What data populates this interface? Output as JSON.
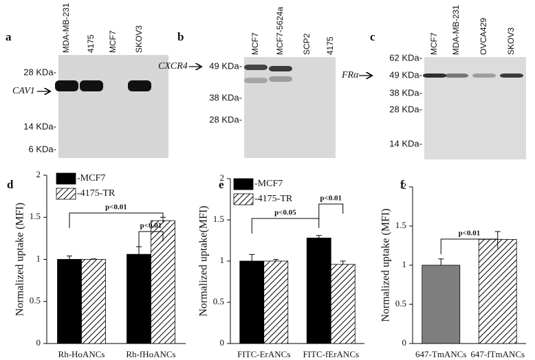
{
  "blots": [
    {
      "letter": "a",
      "lanes": [
        "MDA-MB-231",
        "4175",
        "MCF7",
        "SKOV3"
      ],
      "markers": [
        "28 KDa-",
        "14 KDa-",
        "6 KDa-"
      ],
      "target": "CAV1"
    },
    {
      "letter": "b",
      "lanes": [
        "MCF7",
        "MCF7-5624a",
        "SCP2",
        "4175"
      ],
      "markers": [
        "49 KDa-",
        "38 KDa-",
        "28 KDa-"
      ],
      "target": "CXCR4"
    },
    {
      "letter": "c",
      "lanes": [
        "MCF7",
        "MDA-MB-231",
        "OVCA429",
        "SKOV3"
      ],
      "markers": [
        "62 KDa-",
        "49 KDa-",
        "38 KDa-",
        "28 KDa-",
        "14 KDa-"
      ],
      "target": "FRα"
    }
  ],
  "chart_data": [
    {
      "type": "bar",
      "letter": "d",
      "y_label": "Normalized uptake (MFI)",
      "categories": [
        "Rh-HoANCs",
        "Rh-fHoANCs"
      ],
      "series": [
        {
          "name": "-MCF7",
          "color": "#000000",
          "values": [
            1.0,
            1.06
          ],
          "errors": [
            0.04,
            0.09
          ]
        },
        {
          "name": "-4175-TR",
          "color": "hatched",
          "values": [
            1.0,
            1.46
          ],
          "errors": [
            0.005,
            0.04
          ]
        }
      ],
      "ylim": [
        0,
        2
      ],
      "yticks": [
        0,
        0.5,
        1,
        1.5,
        2
      ],
      "annotations": [
        "p<0.01",
        "p<0.01"
      ]
    },
    {
      "type": "bar",
      "letter": "e",
      "y_label": "Normalized uptake(MFI)",
      "categories": [
        "FITC-ErANCs",
        "FITC-fErANCs"
      ],
      "series": [
        {
          "name": "-MCF7",
          "color": "#000000",
          "values": [
            1.0,
            1.28
          ],
          "errors": [
            0.08,
            0.03
          ]
        },
        {
          "name": "-4175-TR",
          "color": "hatched",
          "values": [
            1.0,
            0.96
          ],
          "errors": [
            0.02,
            0.04
          ]
        }
      ],
      "ylim": [
        0,
        2
      ],
      "yticks": [
        0,
        0.5,
        1,
        1.5,
        2
      ],
      "annotations": [
        "p<0.05",
        "p<0.01"
      ]
    },
    {
      "type": "bar",
      "letter": "f",
      "y_label": "Normalized uptake (MFI)",
      "categories": [
        "647-TmANCs",
        "647-fTmANCs"
      ],
      "series": [
        {
          "values": [
            1.0,
            1.33
          ],
          "errors": [
            0.08,
            0.1
          ],
          "colors": [
            "#7f7f7f",
            "hatched"
          ]
        }
      ],
      "ylim": [
        0,
        2
      ],
      "yticks": [
        0,
        0.5,
        1,
        1.5,
        2
      ],
      "annotations": [
        "p<0.01"
      ]
    }
  ]
}
